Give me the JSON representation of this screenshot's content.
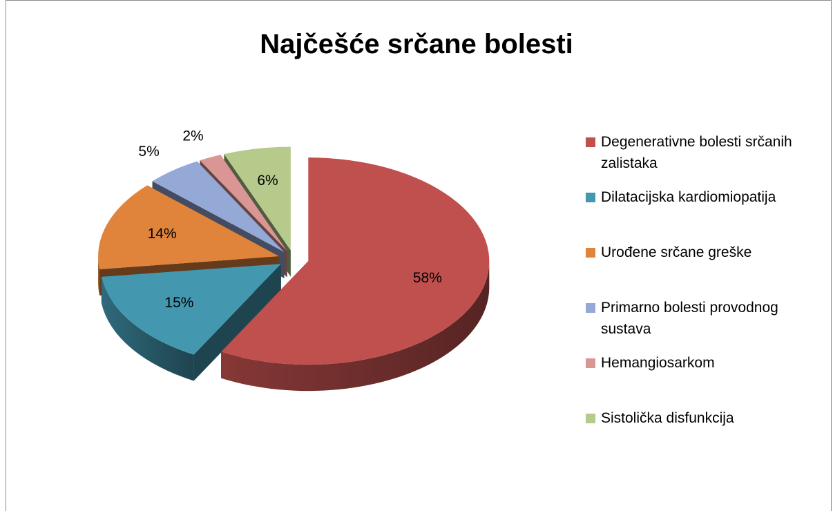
{
  "chart_data": {
    "type": "pie",
    "title": "Najčešće srčane bolesti",
    "categories": [
      "Degenerativne bolesti srčanih zalistaka",
      "Dilatacijska kardiomiopatija",
      "Urođene srčane greške",
      "Primarno bolesti provodnog sustava",
      "Hemangiosarkom",
      "Sistolička disfunkcija"
    ],
    "values": [
      58,
      15,
      14,
      5,
      2,
      6
    ],
    "value_labels": [
      "58%",
      "15%",
      "14%",
      "5%",
      "2%",
      "6%"
    ],
    "colors": [
      "#c0504d",
      "#4398b0",
      "#e0843c",
      "#95a9d6",
      "#d99694",
      "#b6ca8c"
    ],
    "legend": "right"
  }
}
